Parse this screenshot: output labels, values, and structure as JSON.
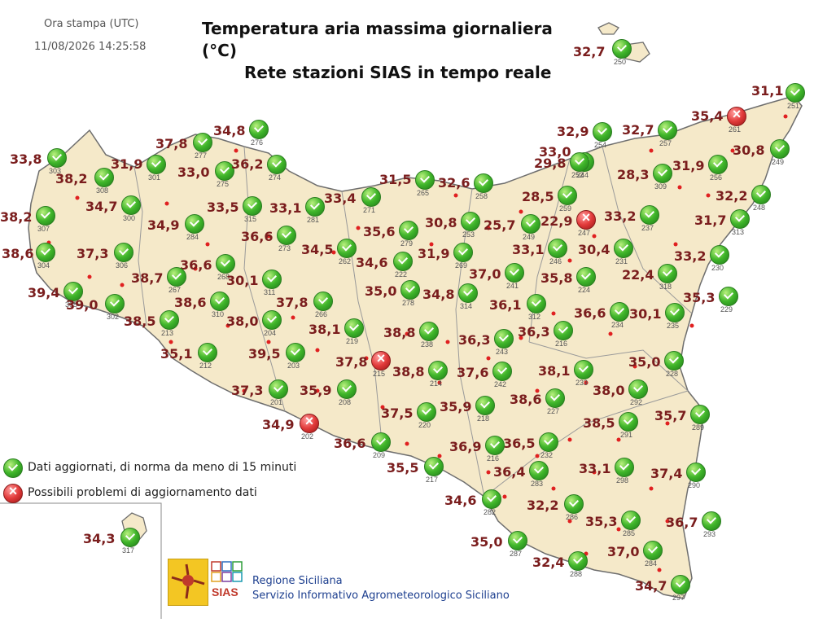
{
  "header": {
    "print_label": "Ora stampa (UTC)",
    "print_time": "11/08/2026 14:25:58",
    "title_line1": "Temperatura aria massima giornaliera (°C)",
    "title_line2": "Rete stazioni SIAS in tempo reale"
  },
  "legend": {
    "ok_label": "Dati aggiornati, di norma da meno di 15 minuti",
    "err_label": "Possibili problemi di aggiornamento dati"
  },
  "footer": {
    "org_line1": "Regione Siciliana",
    "org_line2": "Servizio Informativo Agrometeorologico Siciliano",
    "sias_text": "SIAS"
  },
  "colors": {
    "land": "#f5e9c9",
    "coast": "#6e6e6e",
    "value_text": "#7a1d1d",
    "ok_icon": "#3fb52a",
    "err_icon": "#e23b3b",
    "red_dot": "#e02020"
  },
  "stations": [
    {
      "code": "250",
      "value": "32,7",
      "status": "ok"
    },
    {
      "code": "251",
      "value": "31,1",
      "status": "ok"
    },
    {
      "code": "261",
      "value": "35,4",
      "status": "err"
    },
    {
      "code": "254",
      "value": "32,9",
      "status": "ok"
    },
    {
      "code": "257",
      "value": "32,7",
      "status": "ok"
    },
    {
      "code": "244",
      "value": "33,0",
      "status": "ok"
    },
    {
      "code": "249",
      "value": "30,8",
      "status": "ok"
    },
    {
      "code": "252",
      "value": "29,8",
      "status": "ok"
    },
    {
      "code": "309",
      "value": "28,3",
      "status": "ok"
    },
    {
      "code": "256",
      "value": "31,9",
      "status": "ok"
    },
    {
      "code": "248",
      "value": "32,2",
      "status": "ok"
    },
    {
      "code": "265",
      "value": "31,5",
      "status": "ok"
    },
    {
      "code": "258",
      "value": "32,6",
      "status": "ok"
    },
    {
      "code": "259",
      "value": "28,5",
      "status": "ok"
    },
    {
      "code": "247",
      "value": "22,9",
      "status": "err"
    },
    {
      "code": "237",
      "value": "33,2",
      "status": "ok"
    },
    {
      "code": "313",
      "value": "31,7",
      "status": "ok"
    },
    {
      "code": "303",
      "value": "33,8",
      "status": "ok"
    },
    {
      "code": "301",
      "value": "31,9",
      "status": "ok"
    },
    {
      "code": "308",
      "value": "38,2",
      "status": "ok"
    },
    {
      "code": "277",
      "value": "37,8",
      "status": "ok"
    },
    {
      "code": "276",
      "value": "34,8",
      "status": "ok"
    },
    {
      "code": "275",
      "value": "33,0",
      "status": "ok"
    },
    {
      "code": "274",
      "value": "36,2",
      "status": "ok"
    },
    {
      "code": "271",
      "value": "33,4",
      "status": "ok"
    },
    {
      "code": "307",
      "value": "38,2",
      "status": "ok"
    },
    {
      "code": "300",
      "value": "34,7",
      "status": "ok"
    },
    {
      "code": "284",
      "value": "34,9",
      "status": "ok"
    },
    {
      "code": "315",
      "value": "33,5",
      "status": "ok"
    },
    {
      "code": "281",
      "value": "33,1",
      "status": "ok"
    },
    {
      "code": "253",
      "value": "30,8",
      "status": "ok"
    },
    {
      "code": "249",
      "value": "25,7",
      "status": "ok"
    },
    {
      "code": "304",
      "value": "38,6",
      "status": "ok"
    },
    {
      "code": "306",
      "value": "37,3",
      "status": "ok"
    },
    {
      "code": "273",
      "value": "36,6",
      "status": "ok"
    },
    {
      "code": "279",
      "value": "35,6",
      "status": "ok"
    },
    {
      "code": "268",
      "value": "36,6",
      "status": "ok"
    },
    {
      "code": "262",
      "value": "34,5",
      "status": "ok"
    },
    {
      "code": "222",
      "value": "34,6",
      "status": "ok"
    },
    {
      "code": "269",
      "value": "31,9",
      "status": "ok"
    },
    {
      "code": "246",
      "value": "33,1",
      "status": "ok"
    },
    {
      "code": "231",
      "value": "30,4",
      "status": "ok"
    },
    {
      "code": "230",
      "value": "33,2",
      "status": "ok"
    },
    {
      "code": "318",
      "value": "22,4",
      "status": "ok"
    },
    {
      "code": "305",
      "value": "39,4",
      "status": "ok"
    },
    {
      "code": "267",
      "value": "38,7",
      "status": "ok"
    },
    {
      "code": "311",
      "value": "30,1",
      "status": "ok"
    },
    {
      "code": "278",
      "value": "35,0",
      "status": "ok"
    },
    {
      "code": "241",
      "value": "37,0",
      "status": "ok"
    },
    {
      "code": "224",
      "value": "35,8",
      "status": "ok"
    },
    {
      "code": "302",
      "value": "39,0",
      "status": "ok"
    },
    {
      "code": "310",
      "value": "38,6",
      "status": "ok"
    },
    {
      "code": "266",
      "value": "37,8",
      "status": "ok"
    },
    {
      "code": "314",
      "value": "34,8",
      "status": "ok"
    },
    {
      "code": "312",
      "value": "36,1",
      "status": "ok"
    },
    {
      "code": "234",
      "value": "36,6",
      "status": "ok"
    },
    {
      "code": "235",
      "value": "30,1",
      "status": "ok"
    },
    {
      "code": "229",
      "value": "35,3",
      "status": "ok"
    },
    {
      "code": "213",
      "value": "38,5",
      "status": "ok"
    },
    {
      "code": "204",
      "value": "38,0",
      "status": "ok"
    },
    {
      "code": "219",
      "value": "38,1",
      "status": "ok"
    },
    {
      "code": "238",
      "value": "38,8",
      "status": "ok"
    },
    {
      "code": "243",
      "value": "36,3",
      "status": "ok"
    },
    {
      "code": "216",
      "value": "36,3",
      "status": "ok"
    },
    {
      "code": "212",
      "value": "35,1",
      "status": "ok"
    },
    {
      "code": "203",
      "value": "39,5",
      "status": "ok"
    },
    {
      "code": "215",
      "value": "37,8",
      "status": "err"
    },
    {
      "code": "214",
      "value": "38,8",
      "status": "ok"
    },
    {
      "code": "242",
      "value": "37,6",
      "status": "ok"
    },
    {
      "code": "233",
      "value": "38,1",
      "status": "ok"
    },
    {
      "code": "228",
      "value": "35,0",
      "status": "ok"
    },
    {
      "code": "201",
      "value": "37,3",
      "status": "ok"
    },
    {
      "code": "208",
      "value": "35,9",
      "status": "ok"
    },
    {
      "code": "220",
      "value": "37,5",
      "status": "ok"
    },
    {
      "code": "218",
      "value": "35,9",
      "status": "ok"
    },
    {
      "code": "227",
      "value": "38,6",
      "status": "ok"
    },
    {
      "code": "292",
      "value": "38,0",
      "status": "ok"
    },
    {
      "code": "289",
      "value": "35,7",
      "status": "ok"
    },
    {
      "code": "202",
      "value": "34,9",
      "status": "err"
    },
    {
      "code": "291",
      "value": "38,5",
      "status": "ok"
    },
    {
      "code": "209",
      "value": "36,6",
      "status": "ok"
    },
    {
      "code": "232",
      "value": "36,5",
      "status": "ok"
    },
    {
      "code": "216",
      "value": "36,9",
      "status": "ok"
    },
    {
      "code": "217",
      "value": "35,5",
      "status": "ok"
    },
    {
      "code": "283",
      "value": "36,4",
      "status": "ok"
    },
    {
      "code": "298",
      "value": "33,1",
      "status": "ok"
    },
    {
      "code": "290",
      "value": "37,4",
      "status": "ok"
    },
    {
      "code": "282",
      "value": "34,6",
      "status": "ok"
    },
    {
      "code": "286",
      "value": "32,2",
      "status": "ok"
    },
    {
      "code": "285",
      "value": "35,3",
      "status": "ok"
    },
    {
      "code": "293",
      "value": "36,7",
      "status": "ok"
    },
    {
      "code": "317",
      "value": "34,3",
      "status": "ok"
    },
    {
      "code": "287",
      "value": "35,0",
      "status": "ok"
    },
    {
      "code": "284",
      "value": "37,0",
      "status": "ok"
    },
    {
      "code": "288",
      "value": "32,4",
      "status": "ok"
    },
    {
      "code": "297",
      "value": "34,7",
      "status": "ok"
    }
  ]
}
